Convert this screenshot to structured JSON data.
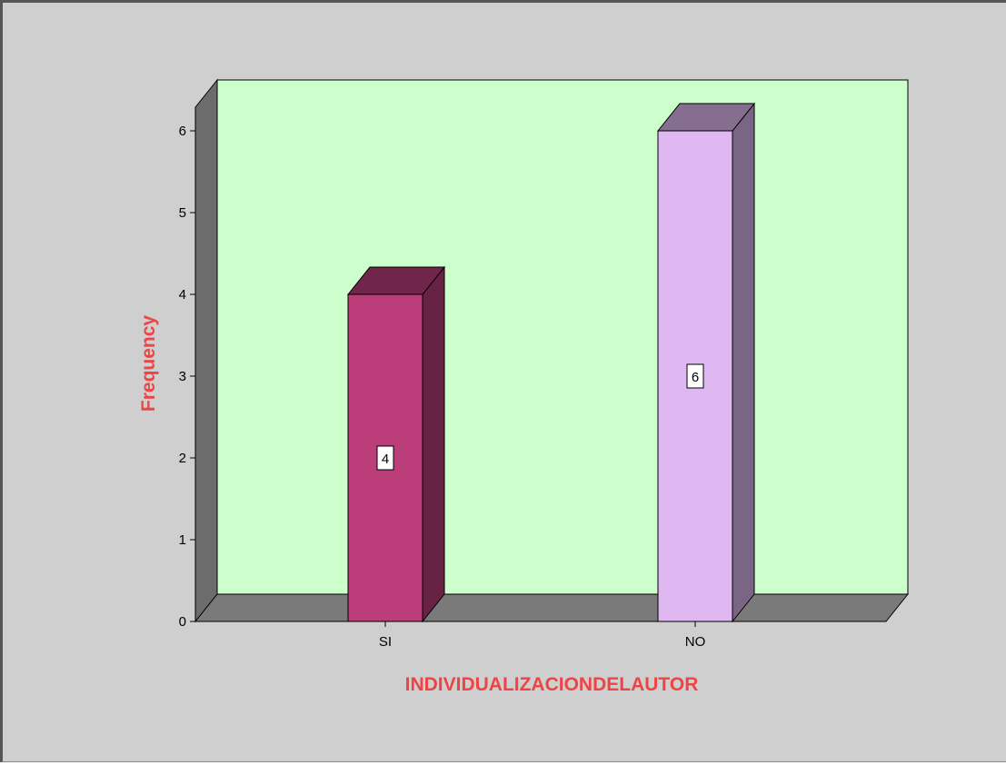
{
  "chart_data": {
    "type": "bar",
    "style": "3d",
    "categories": [
      "SI",
      "NO"
    ],
    "values": [
      4,
      6
    ],
    "data_labels": [
      "4",
      "6"
    ],
    "title": "",
    "xlabel": "INDIVIDUALIZACIONDELAUTOR",
    "ylabel": "Frequency",
    "ylim": [
      0,
      6
    ],
    "yticks": [
      "0",
      "1",
      "2",
      "3",
      "4",
      "5",
      "6"
    ],
    "grid": false,
    "legend": "none",
    "bar_colors": [
      "#bb3e7b",
      "#dfb8f2"
    ],
    "colors": {
      "background": "#cfcfcf",
      "plot_back_wall": "#ccffcc",
      "floor": "#7a7a7a",
      "side_wall": "#6c6c6c",
      "axis_title": "#ee4444"
    }
  }
}
